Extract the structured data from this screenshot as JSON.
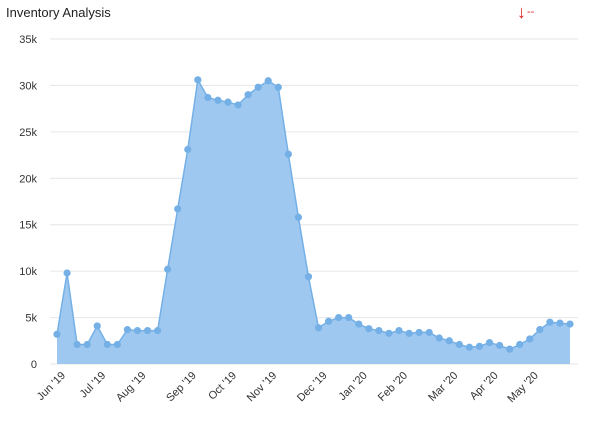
{
  "header": {
    "title": "Inventory Analysis",
    "trend_arrow": "↓",
    "trend_value": "--"
  },
  "colors": {
    "area_fill": "#9fc8f0",
    "line": "#74b0e6",
    "point": "#74b0e6",
    "grid": "#e6e6e6",
    "trend": "#e02020"
  },
  "chart_data": {
    "type": "area",
    "title": "Inventory Analysis",
    "xlabel": "",
    "ylabel": "",
    "ylim": [
      0,
      35000
    ],
    "y_ticks": [
      0,
      5000,
      10000,
      15000,
      20000,
      25000,
      30000,
      35000
    ],
    "y_tick_labels": [
      "0",
      "5k",
      "10k",
      "15k",
      "20k",
      "25k",
      "30k",
      "35k"
    ],
    "x_tick_labels": [
      "Jun '19",
      "Jul '19",
      "Aug '19",
      "Sep '19",
      "Oct '19",
      "Nov '19",
      "Dec '19",
      "Jan '20",
      "Feb '20",
      "Mar '20",
      "Apr '20",
      "May '20"
    ],
    "x_tick_week_index": [
      0,
      4,
      8,
      13,
      17,
      21,
      26,
      30,
      34,
      39,
      43,
      47
    ],
    "grid": true,
    "legend": "none",
    "series": [
      {
        "values": [
          3200,
          9800,
          2100,
          2100,
          4100,
          2100,
          2100,
          3700,
          3600,
          3600,
          3600,
          10200,
          16700,
          23100,
          30600,
          28700,
          28400,
          28200,
          27900,
          29000,
          29800,
          30500,
          29800,
          22600,
          15800,
          9400,
          3900,
          4600,
          5000,
          5000,
          4300,
          3800,
          3600,
          3300,
          3600,
          3300,
          3400,
          3400,
          2800,
          2500,
          2100,
          1800,
          1900,
          2300,
          2000,
          1600,
          2100,
          2700,
          3700,
          4500,
          4400,
          4300
        ]
      }
    ]
  }
}
